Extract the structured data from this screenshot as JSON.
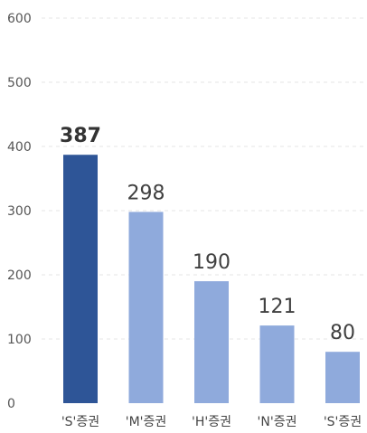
{
  "chart_data": {
    "type": "bar",
    "title": "",
    "xlabel": "",
    "ylabel": "",
    "categories": [
      "'S'증권",
      "'M'증권",
      "'H'증권",
      "'N'증권",
      "'S'증권"
    ],
    "values": [
      387,
      298,
      190,
      121,
      80
    ],
    "ylim": [
      0,
      600
    ],
    "yticks": [
      0,
      100,
      200,
      300,
      400,
      500,
      600
    ],
    "grid": true,
    "legend": "none",
    "highlight_index": 0,
    "colors": {
      "highlight": "#2e5597",
      "bar": "#8faadc",
      "grid": "#e6e6e6"
    }
  }
}
